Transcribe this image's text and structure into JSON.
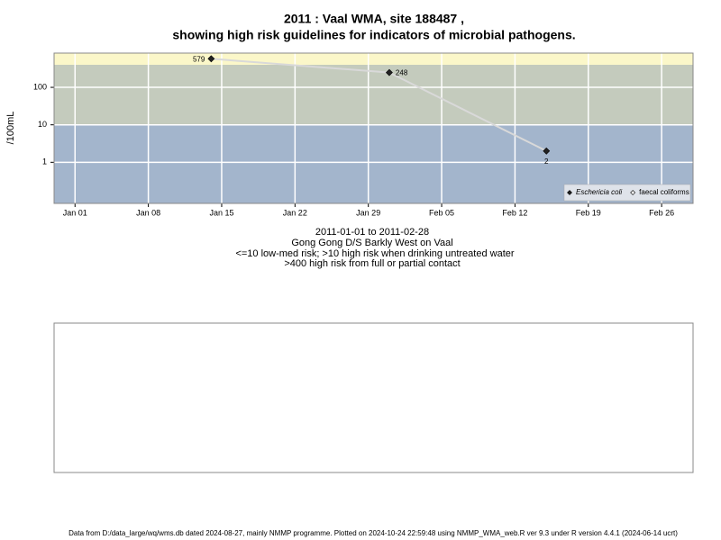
{
  "chart_data": {
    "type": "line",
    "title": [
      "2011 : Vaal WMA, site 188487 ,",
      "showing high risk guidelines for indicators of microbial pathogens."
    ],
    "ylabel": "/100mL",
    "xlabel": [
      "2011-01-01 to 2011-02-28",
      "Gong Gong D/S Barkly West on Vaal",
      "<=10 low-med risk; >10 high risk when drinking untreated water",
      ">400 high risk from full or partial contact"
    ],
    "x": [
      "2011-01-14",
      "2011-01-31",
      "2011-02-15"
    ],
    "series": [
      {
        "name": "Eschericia coli",
        "color": "#222222",
        "line_color": "#d9d9d9",
        "values": [
          579,
          248,
          2
        ]
      },
      {
        "name": "faecal coliforms",
        "color": "#ffffff",
        "values": [
          null,
          null,
          null
        ]
      }
    ],
    "log_y": true,
    "ylim": [
      0.08,
      820
    ],
    "yticks": [
      1,
      10,
      100
    ],
    "xlim": [
      "2010-12-30",
      "2011-03-01"
    ],
    "xticks": [
      {
        "value": "2011-01-01",
        "label": "Jan 01"
      },
      {
        "value": "2011-01-08",
        "label": "Jan 08"
      },
      {
        "value": "2011-01-15",
        "label": "Jan 15"
      },
      {
        "value": "2011-01-22",
        "label": "Jan 22"
      },
      {
        "value": "2011-01-29",
        "label": "Jan 29"
      },
      {
        "value": "2011-02-05",
        "label": "Feb 05"
      },
      {
        "value": "2011-02-12",
        "label": "Feb 12"
      },
      {
        "value": "2011-02-19",
        "label": "Feb 19"
      },
      {
        "value": "2011-02-26",
        "label": "Feb 26"
      }
    ],
    "guidelines": [
      10,
      400
    ],
    "band_colors": [
      "#a3b5cc",
      "#c4cbbd",
      "#fbf7c9"
    ],
    "grid": true,
    "legend": "bottom-right",
    "footer": "Data from D:/data_large/wq/wms.db dated 2024-08-27, mainly NMMP programme. Plotted on 2024-10-24 22:59:48 using NMMP_WMA_web.R ver 9.3 under R version 4.4.1 (2024-06-14 ucrt)"
  }
}
